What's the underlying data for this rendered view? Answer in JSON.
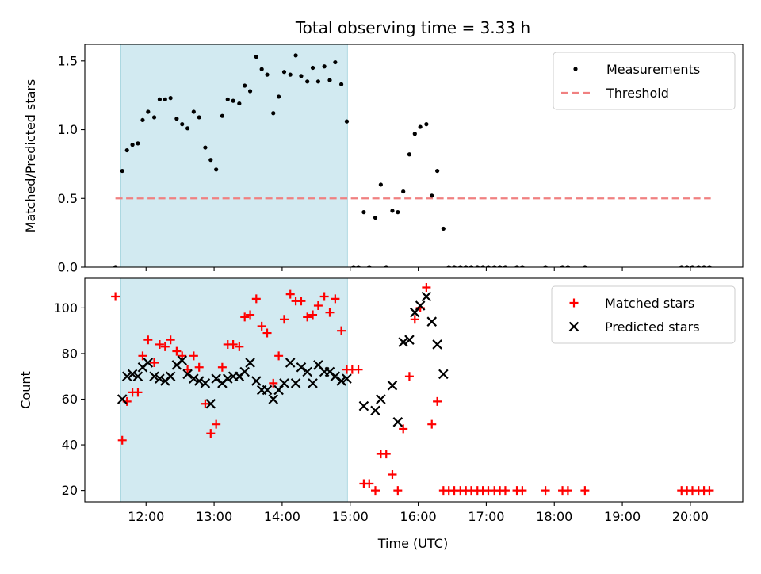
{
  "chart_data": {
    "type": "scatter",
    "title": "Total observing time = 3.33 h",
    "xlabel": "Time (UTC)",
    "x_unit": "hours UTC",
    "xlim": [
      11.1,
      20.77
    ],
    "x_ticks": [
      {
        "value": 12,
        "label": "12:00"
      },
      {
        "value": 13,
        "label": "13:00"
      },
      {
        "value": 14,
        "label": "14:00"
      },
      {
        "value": 15,
        "label": "15:00"
      },
      {
        "value": 16,
        "label": "16:00"
      },
      {
        "value": 17,
        "label": "17:00"
      },
      {
        "value": 18,
        "label": "18:00"
      },
      {
        "value": 19,
        "label": "19:00"
      },
      {
        "value": 20,
        "label": "20:00"
      }
    ],
    "shaded_interval": {
      "x_start": 11.63,
      "x_end": 14.96,
      "color": "#add8e6"
    },
    "panels": [
      {
        "id": "top",
        "ylabel": "Matched/Predicted stars",
        "ylim": [
          0,
          1.62
        ],
        "y_ticks": [
          {
            "value": 0,
            "label": "0.0"
          },
          {
            "value": 0.5,
            "label": "0.5"
          },
          {
            "value": 1.0,
            "label": "1.0"
          },
          {
            "value": 1.5,
            "label": "1.5"
          }
        ],
        "legend_position": "top-right",
        "threshold": {
          "name": "Threshold",
          "y": 0.5,
          "x_range": [
            11.55,
            20.3
          ],
          "color": "#f08080"
        },
        "series": [
          {
            "name": "Measurements",
            "marker": "dot",
            "color": "#000000",
            "points": [
              [
                11.55,
                0.0
              ],
              [
                11.65,
                0.7
              ],
              [
                11.72,
                0.85
              ],
              [
                11.8,
                0.89
              ],
              [
                11.88,
                0.9
              ],
              [
                11.95,
                1.07
              ],
              [
                12.03,
                1.13
              ],
              [
                12.12,
                1.09
              ],
              [
                12.2,
                1.22
              ],
              [
                12.28,
                1.22
              ],
              [
                12.36,
                1.23
              ],
              [
                12.45,
                1.08
              ],
              [
                12.53,
                1.04
              ],
              [
                12.61,
                1.01
              ],
              [
                12.7,
                1.13
              ],
              [
                12.78,
                1.09
              ],
              [
                12.87,
                0.87
              ],
              [
                12.95,
                0.78
              ],
              [
                13.03,
                0.71
              ],
              [
                13.12,
                1.1
              ],
              [
                13.2,
                1.22
              ],
              [
                13.28,
                1.21
              ],
              [
                13.37,
                1.19
              ],
              [
                13.45,
                1.32
              ],
              [
                13.53,
                1.28
              ],
              [
                13.62,
                1.53
              ],
              [
                13.7,
                1.44
              ],
              [
                13.78,
                1.4
              ],
              [
                13.87,
                1.12
              ],
              [
                13.95,
                1.24
              ],
              [
                14.03,
                1.42
              ],
              [
                14.12,
                1.4
              ],
              [
                14.2,
                1.54
              ],
              [
                14.28,
                1.39
              ],
              [
                14.37,
                1.35
              ],
              [
                14.45,
                1.45
              ],
              [
                14.53,
                1.35
              ],
              [
                14.62,
                1.46
              ],
              [
                14.7,
                1.36
              ],
              [
                14.78,
                1.49
              ],
              [
                14.87,
                1.33
              ],
              [
                14.95,
                1.06
              ],
              [
                15.05,
                0.0
              ],
              [
                15.12,
                0.0
              ],
              [
                15.2,
                0.4
              ],
              [
                15.28,
                0.0
              ],
              [
                15.37,
                0.36
              ],
              [
                15.45,
                0.6
              ],
              [
                15.53,
                0.0
              ],
              [
                15.62,
                0.41
              ],
              [
                15.7,
                0.4
              ],
              [
                15.78,
                0.55
              ],
              [
                15.87,
                0.82
              ],
              [
                15.95,
                0.97
              ],
              [
                16.03,
                1.02
              ],
              [
                16.12,
                1.04
              ],
              [
                16.2,
                0.52
              ],
              [
                16.28,
                0.7
              ],
              [
                16.37,
                0.28
              ],
              [
                16.45,
                0.0
              ],
              [
                16.53,
                0.0
              ],
              [
                16.62,
                0.0
              ],
              [
                16.7,
                0.0
              ],
              [
                16.78,
                0.0
              ],
              [
                16.87,
                0.0
              ],
              [
                16.95,
                0.0
              ],
              [
                17.03,
                0.0
              ],
              [
                17.12,
                0.0
              ],
              [
                17.2,
                0.0
              ],
              [
                17.28,
                0.0
              ],
              [
                17.45,
                0.0
              ],
              [
                17.53,
                0.0
              ],
              [
                17.87,
                0.0
              ],
              [
                18.12,
                0.0
              ],
              [
                18.2,
                0.0
              ],
              [
                18.45,
                0.0
              ],
              [
                19.87,
                0.0
              ],
              [
                19.95,
                0.0
              ],
              [
                20.03,
                0.0
              ],
              [
                20.12,
                0.0
              ],
              [
                20.2,
                0.0
              ],
              [
                20.28,
                0.0
              ]
            ]
          }
        ]
      },
      {
        "id": "bottom",
        "ylabel": "Count",
        "ylim": [
          15,
          113
        ],
        "y_ticks": [
          {
            "value": 20,
            "label": "20"
          },
          {
            "value": 40,
            "label": "40"
          },
          {
            "value": 60,
            "label": "60"
          },
          {
            "value": 80,
            "label": "80"
          },
          {
            "value": 100,
            "label": "100"
          }
        ],
        "legend_position": "top-right",
        "series": [
          {
            "name": "Matched stars",
            "marker": "plus",
            "color": "#ff0000",
            "points": [
              [
                11.55,
                105
              ],
              [
                11.65,
                42
              ],
              [
                11.72,
                59
              ],
              [
                11.8,
                63
              ],
              [
                11.88,
                63
              ],
              [
                11.95,
                79
              ],
              [
                12.03,
                86
              ],
              [
                12.12,
                76
              ],
              [
                12.2,
                84
              ],
              [
                12.28,
                83
              ],
              [
                12.36,
                86
              ],
              [
                12.45,
                81
              ],
              [
                12.53,
                79
              ],
              [
                12.61,
                73
              ],
              [
                12.7,
                79
              ],
              [
                12.78,
                74
              ],
              [
                12.87,
                58
              ],
              [
                12.95,
                45
              ],
              [
                13.03,
                49
              ],
              [
                13.12,
                74
              ],
              [
                13.2,
                84
              ],
              [
                13.28,
                84
              ],
              [
                13.37,
                83
              ],
              [
                13.45,
                96
              ],
              [
                13.53,
                97
              ],
              [
                13.62,
                104
              ],
              [
                13.7,
                92
              ],
              [
                13.78,
                89
              ],
              [
                13.87,
                67
              ],
              [
                13.95,
                79
              ],
              [
                14.03,
                95
              ],
              [
                14.12,
                106
              ],
              [
                14.2,
                103
              ],
              [
                14.28,
                103
              ],
              [
                14.37,
                96
              ],
              [
                14.45,
                97
              ],
              [
                14.53,
                101
              ],
              [
                14.62,
                105
              ],
              [
                14.7,
                98
              ],
              [
                14.78,
                104
              ],
              [
                14.87,
                90
              ],
              [
                14.95,
                73
              ],
              [
                15.03,
                73
              ],
              [
                15.12,
                73
              ],
              [
                15.2,
                23
              ],
              [
                15.28,
                23
              ],
              [
                15.37,
                20
              ],
              [
                15.45,
                36
              ],
              [
                15.53,
                36
              ],
              [
                15.62,
                27
              ],
              [
                15.7,
                20
              ],
              [
                15.78,
                47
              ],
              [
                15.87,
                70
              ],
              [
                15.95,
                95
              ],
              [
                16.03,
                100
              ],
              [
                16.12,
                109
              ],
              [
                16.2,
                49
              ],
              [
                16.28,
                59
              ],
              [
                16.37,
                20
              ],
              [
                16.45,
                20
              ],
              [
                16.53,
                20
              ],
              [
                16.62,
                20
              ],
              [
                16.7,
                20
              ],
              [
                16.78,
                20
              ],
              [
                16.87,
                20
              ],
              [
                16.95,
                20
              ],
              [
                17.03,
                20
              ],
              [
                17.12,
                20
              ],
              [
                17.2,
                20
              ],
              [
                17.28,
                20
              ],
              [
                17.45,
                20
              ],
              [
                17.53,
                20
              ],
              [
                17.87,
                20
              ],
              [
                18.12,
                20
              ],
              [
                18.2,
                20
              ],
              [
                18.45,
                20
              ],
              [
                19.87,
                20
              ],
              [
                19.95,
                20
              ],
              [
                20.03,
                20
              ],
              [
                20.12,
                20
              ],
              [
                20.2,
                20
              ],
              [
                20.28,
                20
              ]
            ]
          },
          {
            "name": "Predicted stars",
            "marker": "x",
            "color": "#000000",
            "points": [
              [
                11.65,
                60
              ],
              [
                11.72,
                70
              ],
              [
                11.8,
                71
              ],
              [
                11.88,
                70
              ],
              [
                11.95,
                74
              ],
              [
                12.03,
                76
              ],
              [
                12.12,
                70
              ],
              [
                12.2,
                69
              ],
              [
                12.28,
                68
              ],
              [
                12.36,
                70
              ],
              [
                12.45,
                75
              ],
              [
                12.53,
                77
              ],
              [
                12.61,
                71
              ],
              [
                12.7,
                69
              ],
              [
                12.78,
                68
              ],
              [
                12.87,
                67
              ],
              [
                12.95,
                58
              ],
              [
                13.03,
                69
              ],
              [
                13.12,
                67
              ],
              [
                13.2,
                69
              ],
              [
                13.28,
                70
              ],
              [
                13.37,
                70
              ],
              [
                13.45,
                72
              ],
              [
                13.53,
                76
              ],
              [
                13.62,
                68
              ],
              [
                13.7,
                64
              ],
              [
                13.78,
                64
              ],
              [
                13.87,
                60
              ],
              [
                13.95,
                64
              ],
              [
                14.03,
                67
              ],
              [
                14.12,
                76
              ],
              [
                14.2,
                67
              ],
              [
                14.28,
                74
              ],
              [
                14.37,
                72
              ],
              [
                14.45,
                67
              ],
              [
                14.53,
                75
              ],
              [
                14.62,
                72
              ],
              [
                14.7,
                72
              ],
              [
                14.78,
                70
              ],
              [
                14.87,
                68
              ],
              [
                14.95,
                69
              ],
              [
                15.2,
                57
              ],
              [
                15.37,
                55
              ],
              [
                15.45,
                60
              ],
              [
                15.62,
                66
              ],
              [
                15.7,
                50
              ],
              [
                15.78,
                85
              ],
              [
                15.87,
                86
              ],
              [
                15.95,
                98
              ],
              [
                16.03,
                101
              ],
              [
                16.12,
                105
              ],
              [
                16.2,
                94
              ],
              [
                16.28,
                84
              ],
              [
                16.37,
                71
              ]
            ]
          }
        ]
      }
    ]
  }
}
